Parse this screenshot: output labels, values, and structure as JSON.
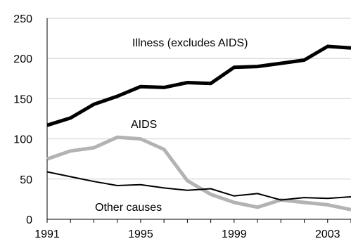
{
  "chart_data": {
    "type": "line",
    "title": "",
    "xlabel": "",
    "ylabel": "",
    "x": [
      1991,
      1992,
      1993,
      1994,
      1995,
      1996,
      1997,
      1998,
      1999,
      2000,
      2001,
      2002,
      2003,
      2004
    ],
    "xticks": [
      "1991",
      "1995",
      "1999",
      "2003"
    ],
    "xlim": [
      1991,
      2004
    ],
    "yticks": [
      "0",
      "50",
      "100",
      "150",
      "200",
      "250"
    ],
    "ylim": [
      0,
      250
    ],
    "grid": true,
    "legend": "none",
    "series": [
      {
        "name": "Illness (excludes AIDS)",
        "color": "#000000",
        "line_width": "thick",
        "values": [
          117,
          126,
          143,
          153,
          165,
          164,
          170,
          169,
          189,
          190,
          194,
          198,
          215,
          213
        ]
      },
      {
        "name": "AIDS",
        "color": "#b3b3b3",
        "line_width": "thick",
        "values": [
          75,
          85,
          89,
          102,
          100,
          87,
          48,
          31,
          21,
          15,
          24,
          21,
          18,
          12
        ]
      },
      {
        "name": "Other causes",
        "color": "#000000",
        "line_width": "thin",
        "values": [
          59,
          53,
          47,
          42,
          43,
          39,
          36,
          38,
          29,
          32,
          24,
          27,
          26,
          28
        ]
      }
    ]
  }
}
